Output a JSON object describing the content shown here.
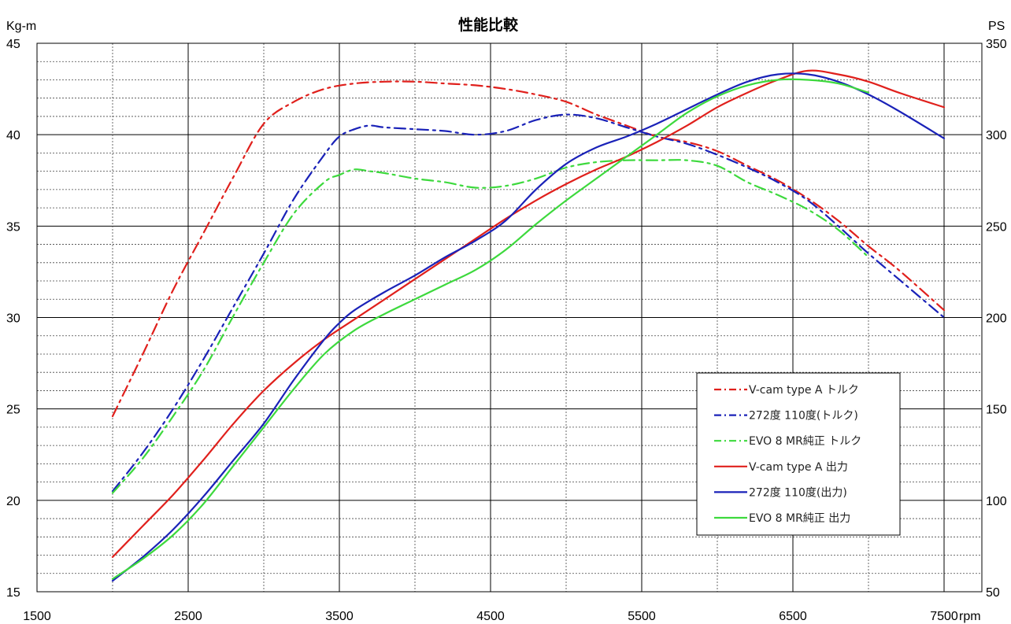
{
  "chart_data": {
    "type": "line",
    "title": "性能比較",
    "xlabel": "rpm",
    "y_left_label": "Kg-m",
    "y_right_label": "PS",
    "xlim": [
      1500,
      7750
    ],
    "x_ticks": [
      1500,
      2500,
      3500,
      4500,
      5500,
      6500,
      7500
    ],
    "ylim_left": [
      15,
      45
    ],
    "y_left_ticks": [
      15,
      20,
      25,
      30,
      35,
      40,
      45
    ],
    "ylim_right": [
      50,
      350
    ],
    "y_right_ticks": [
      50,
      100,
      150,
      200,
      250,
      300,
      350
    ],
    "grid": true,
    "legend_position": "bottom-right",
    "series": [
      {
        "name": "V-cam type A トルク",
        "axis": "left",
        "style": "dashdot",
        "color": "#e0201c",
        "x": [
          2000,
          2200,
          2400,
          2600,
          2800,
          3000,
          3200,
          3400,
          3600,
          3800,
          4000,
          4200,
          4400,
          4600,
          4800,
          5000,
          5200,
          5400,
          5600,
          5800,
          6000,
          6200,
          6400,
          6600,
          6800,
          7000,
          7200,
          7500
        ],
        "values": [
          24.6,
          28.0,
          31.5,
          34.6,
          37.7,
          40.6,
          41.8,
          42.5,
          42.8,
          42.9,
          42.9,
          42.8,
          42.7,
          42.5,
          42.2,
          41.8,
          41.1,
          40.5,
          39.9,
          39.6,
          39.1,
          38.3,
          37.5,
          36.5,
          35.3,
          33.9,
          32.6,
          30.4
        ]
      },
      {
        "name": "272度  110度(トルク)",
        "axis": "left",
        "style": "dashdot",
        "color": "#1a22b8",
        "x": [
          2000,
          2200,
          2400,
          2600,
          2800,
          3000,
          3200,
          3400,
          3500,
          3600,
          3700,
          3800,
          4000,
          4200,
          4400,
          4600,
          4800,
          5000,
          5200,
          5400,
          5600,
          5800,
          6000,
          6200,
          6400,
          6600,
          6800,
          7000,
          7200,
          7500
        ],
        "values": [
          20.5,
          22.6,
          25.0,
          27.7,
          30.6,
          33.5,
          36.5,
          38.9,
          39.9,
          40.3,
          40.5,
          40.4,
          40.3,
          40.2,
          40.0,
          40.2,
          40.8,
          41.1,
          40.9,
          40.4,
          39.9,
          39.5,
          38.9,
          38.2,
          37.4,
          36.4,
          35.0,
          33.5,
          32.1,
          30.0
        ]
      },
      {
        "name": "EVO 8 MR純正 トルク",
        "axis": "left",
        "style": "dashdot",
        "color": "#3dd93d",
        "x": [
          2000,
          2200,
          2400,
          2600,
          2800,
          3000,
          3200,
          3400,
          3500,
          3600,
          3700,
          3800,
          4000,
          4200,
          4400,
          4600,
          4800,
          5000,
          5200,
          5400,
          5600,
          5800,
          6000,
          6200,
          6400,
          6600,
          6800,
          7000
        ],
        "values": [
          20.4,
          22.3,
          24.6,
          27.1,
          30.1,
          33.0,
          35.7,
          37.4,
          37.8,
          38.1,
          38.0,
          37.9,
          37.6,
          37.4,
          37.1,
          37.2,
          37.6,
          38.2,
          38.5,
          38.6,
          38.6,
          38.6,
          38.3,
          37.4,
          36.7,
          35.9,
          34.8,
          33.3
        ]
      },
      {
        "name": "V-cam type A 出力",
        "axis": "right",
        "style": "solid",
        "color": "#e0201c",
        "x": [
          2000,
          2200,
          2400,
          2600,
          2800,
          3000,
          3200,
          3400,
          3600,
          3800,
          4000,
          4200,
          4400,
          4600,
          4800,
          5000,
          5200,
          5400,
          5600,
          5800,
          6000,
          6200,
          6400,
          6600,
          6800,
          7000,
          7200,
          7500
        ],
        "values": [
          69,
          86,
          103,
          122,
          142,
          160,
          175,
          188,
          199,
          210,
          221,
          232,
          243,
          254,
          264,
          273,
          281,
          288,
          296,
          305,
          315,
          323,
          330,
          335,
          333,
          329,
          323,
          315
        ]
      },
      {
        "name": "272度  110度(出力)",
        "axis": "right",
        "style": "solid",
        "color": "#1a22b8",
        "x": [
          2000,
          2200,
          2400,
          2600,
          2800,
          3000,
          3200,
          3400,
          3500,
          3600,
          3800,
          4000,
          4200,
          4400,
          4600,
          4800,
          5000,
          5200,
          5400,
          5600,
          5800,
          6000,
          6200,
          6400,
          6600,
          6800,
          7000,
          7200,
          7500
        ],
        "values": [
          56,
          69,
          84,
          102,
          122,
          142,
          166,
          188,
          197,
          204,
          214,
          223,
          233,
          242,
          253,
          270,
          284,
          293,
          299,
          306,
          314,
          322,
          329,
          333,
          333,
          329,
          322,
          313,
          298
        ]
      },
      {
        "name": "EVO 8 MR純正 出力",
        "axis": "right",
        "style": "solid",
        "color": "#3dd93d",
        "x": [
          2000,
          2200,
          2400,
          2600,
          2800,
          3000,
          3200,
          3400,
          3600,
          3800,
          4000,
          4200,
          4400,
          4600,
          4800,
          5000,
          5200,
          5400,
          5600,
          5800,
          6000,
          6200,
          6400,
          6600,
          6800,
          7000
        ],
        "values": [
          57,
          68,
          81,
          98,
          119,
          140,
          161,
          180,
          193,
          202,
          210,
          218,
          226,
          237,
          251,
          264,
          276,
          288,
          300,
          312,
          321,
          327,
          330,
          330,
          328,
          323
        ]
      }
    ]
  }
}
